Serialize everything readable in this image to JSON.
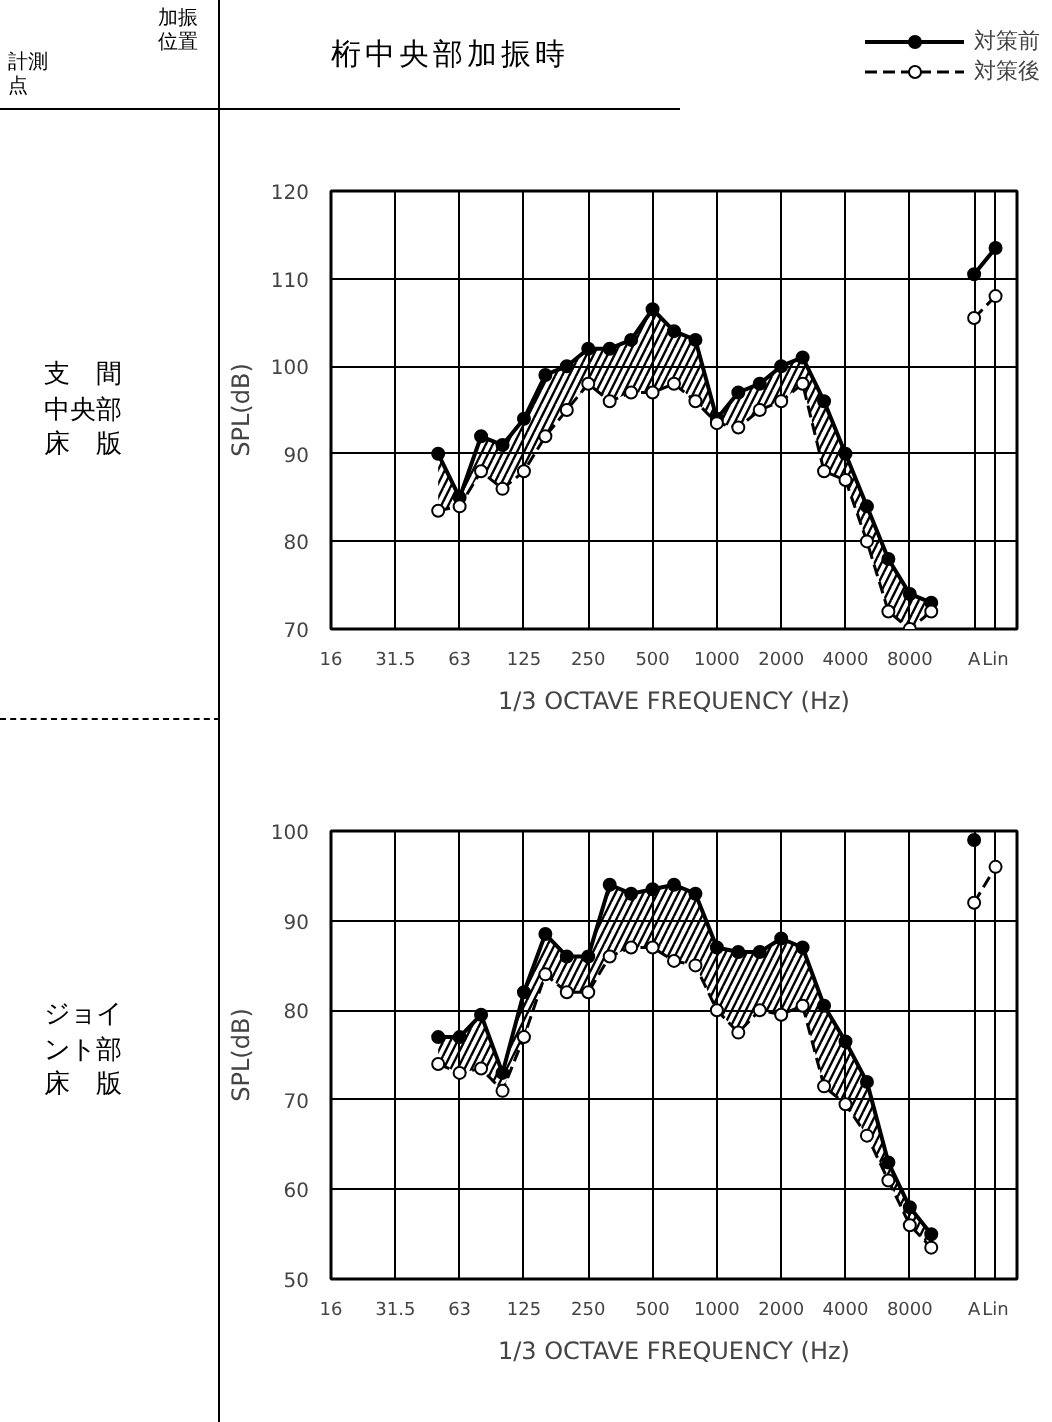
{
  "chart_data": [
    {
      "type": "line",
      "title": "桁中央部加振時",
      "ylabel": "SPL(dB)",
      "xlabel": "1/3 OCTAVE FREQUENCY (Hz)",
      "annotations": [
        "加振位置",
        "計測点",
        "支　間中央部床　版"
      ],
      "categories": [
        "16",
        null,
        null,
        "31.5",
        null,
        null,
        "63",
        null,
        null,
        "125",
        null,
        null,
        "250",
        null,
        null,
        "500",
        null,
        null,
        "1000",
        null,
        null,
        "2000",
        null,
        null,
        "4000",
        null,
        null,
        "8000",
        null,
        null,
        "A",
        "Lin"
      ],
      "ylim": [
        70,
        120
      ],
      "yticks": [
        70,
        80,
        90,
        100,
        110,
        120
      ],
      "grid": true,
      "legend": "top right",
      "series": [
        {
          "name": "対策前",
          "color": "#000000",
          "marker": "circle",
          "line_style": "solid",
          "values": [
            null,
            null,
            null,
            null,
            null,
            90,
            85,
            92,
            91,
            94,
            99,
            100,
            102,
            102,
            103,
            106.5,
            104,
            103,
            94,
            97,
            98,
            100,
            101,
            96,
            90,
            84,
            78,
            74,
            73,
            null,
            110.5,
            113.5
          ],
          "lower": [
            null,
            null,
            null,
            null,
            null,
            83.5,
            84,
            88,
            86,
            88,
            92,
            95,
            98,
            96,
            97,
            97,
            98,
            96,
            93.5,
            93,
            95,
            96,
            98,
            88,
            87,
            80,
            72,
            70,
            72,
            null,
            null,
            null
          ],
          "upper": [
            null,
            null,
            null,
            null,
            null,
            90,
            85,
            92,
            91,
            94,
            99,
            100,
            102,
            102,
            103,
            106.5,
            104,
            103,
            94,
            97,
            98,
            100,
            101,
            96,
            90,
            84,
            78,
            74,
            73,
            null,
            null,
            null
          ]
        },
        {
          "name": "対策後",
          "color": "#000000",
          "marker": "circle_open",
          "line_style": "dashed",
          "values": [
            null,
            null,
            null,
            null,
            null,
            83.5,
            84,
            88,
            86,
            88,
            92,
            95,
            98,
            96,
            97,
            97,
            98,
            96,
            93.5,
            93,
            95,
            96,
            98,
            88,
            87,
            80,
            72,
            70,
            72,
            null,
            105.5,
            108
          ]
        }
      ]
    },
    {
      "type": "line",
      "ylabel": "SPL(dB)",
      "xlabel": "1/3 OCTAVE FREQUENCY (Hz)",
      "annotations": [
        "ジョイント部床　版"
      ],
      "categories": [
        "16",
        null,
        null,
        "31.5",
        null,
        null,
        "63",
        null,
        null,
        "125",
        null,
        null,
        "250",
        null,
        null,
        "500",
        null,
        null,
        "1000",
        null,
        null,
        "2000",
        null,
        null,
        "4000",
        null,
        null,
        "8000",
        null,
        null,
        "A",
        "Lin"
      ],
      "ylim": [
        50,
        100
      ],
      "yticks": [
        50,
        60,
        70,
        80,
        90,
        100
      ],
      "grid": true,
      "series": [
        {
          "color": "#000000",
          "marker": "circle",
          "line_style": "solid",
          "values": [
            null,
            null,
            null,
            null,
            null,
            77,
            77,
            79.5,
            73,
            82,
            88.5,
            86,
            86,
            94,
            93,
            93.5,
            94,
            93,
            87,
            86.5,
            86.5,
            88,
            87,
            80.5,
            76.5,
            72,
            63,
            58,
            55,
            null,
            99,
            null
          ],
          "lower": [
            null,
            null,
            null,
            null,
            null,
            74,
            73,
            73.5,
            71,
            77,
            84,
            82,
            82,
            86,
            87,
            87,
            85.5,
            85,
            80,
            77.5,
            80,
            79.5,
            80.5,
            71.5,
            69.5,
            66,
            61,
            56,
            53.5,
            null,
            null,
            null
          ],
          "upper": [
            null,
            null,
            null,
            null,
            null,
            77,
            77,
            79.5,
            73,
            82,
            88.5,
            86,
            86,
            94,
            93,
            93.5,
            94,
            93,
            87,
            86.5,
            86.5,
            88,
            87,
            80.5,
            76.5,
            72,
            63,
            58,
            55,
            null,
            null,
            null
          ]
        },
        {
          "color": "#000000",
          "marker": "circle_open",
          "line_style": "dashed",
          "values": [
            null,
            null,
            null,
            null,
            null,
            74,
            73,
            73.5,
            71,
            77,
            84,
            82,
            82,
            86,
            87,
            87,
            85.5,
            85,
            80,
            77.5,
            80,
            79.5,
            80.5,
            71.5,
            69.5,
            66,
            61,
            56,
            53.5,
            null,
            92,
            96
          ]
        }
      ]
    }
  ]
}
